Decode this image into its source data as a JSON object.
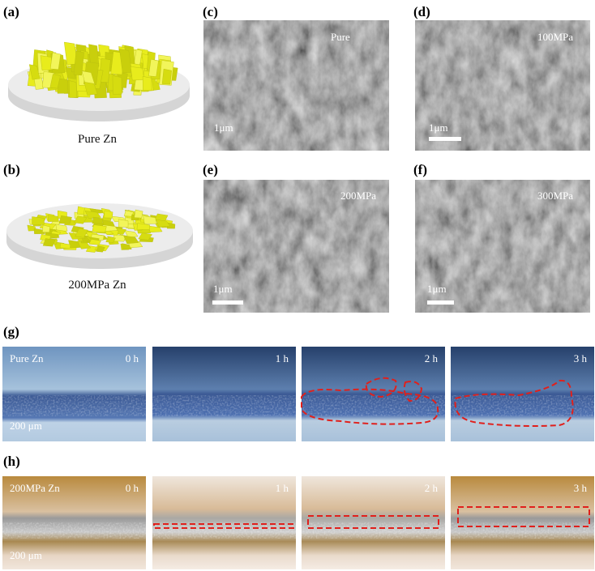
{
  "panels": [
    {
      "label": "(a)",
      "caption": "Pure Zn"
    },
    {
      "label": "(b)",
      "caption": "200MPa Zn"
    },
    {
      "label": "(c)",
      "tag": "Pure",
      "scale": "1μm"
    },
    {
      "label": "(d)",
      "tag": "100MPa",
      "scale": "1μm"
    },
    {
      "label": "(e)",
      "tag": "200MPa",
      "scale": "1μm"
    },
    {
      "label": "(f)",
      "tag": "300MPa",
      "scale": "1μm"
    }
  ],
  "rows": [
    {
      "label": "(g)",
      "sample": "Pure Zn",
      "scale": "200 μm",
      "times": [
        "0 h",
        "1 h",
        "2 h",
        "3 h"
      ]
    },
    {
      "label": "(h)",
      "sample": "200MPa Zn",
      "scale": "200 μm",
      "times": [
        "0 h",
        "1 h",
        "2 h",
        "3 h"
      ]
    }
  ]
}
